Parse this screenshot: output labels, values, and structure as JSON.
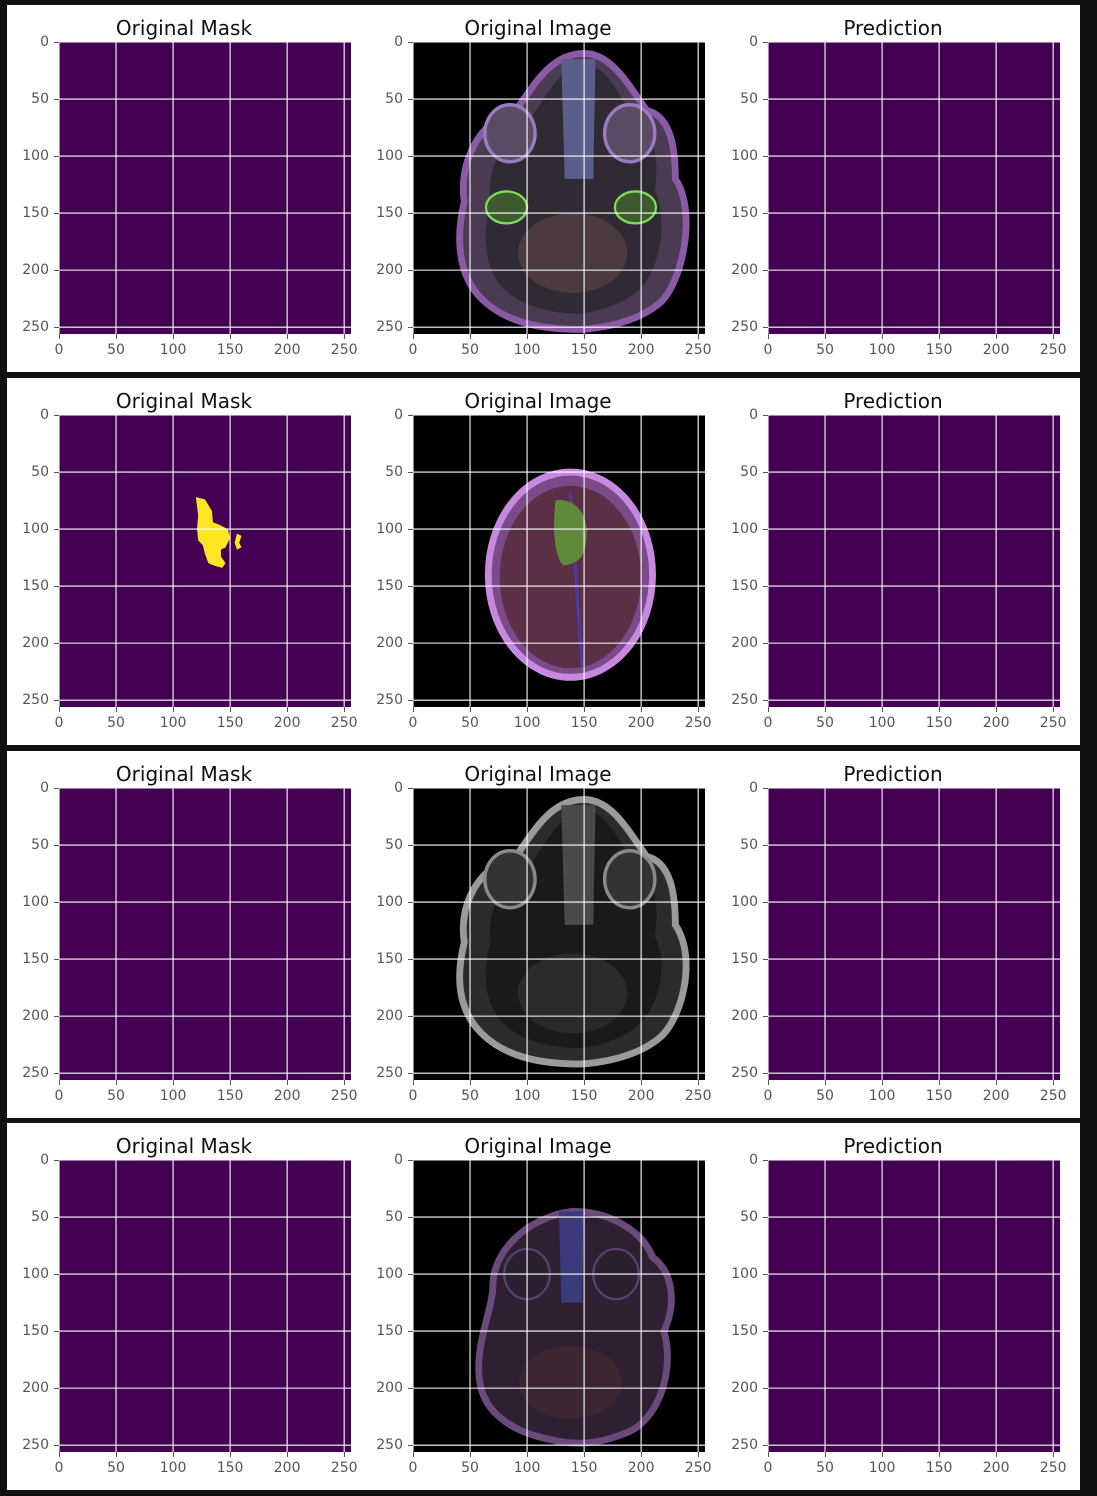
{
  "figures": [
    {
      "panels": [
        {
          "title": "Original Mask",
          "kind": "mask",
          "content": "empty",
          "fill_color": "#440154"
        },
        {
          "title": "Original Image",
          "kind": "mri",
          "content": "mri-color-skull-base",
          "fill_color": "#000000"
        },
        {
          "title": "Prediction",
          "kind": "mask",
          "content": "empty",
          "fill_color": "#440154"
        }
      ]
    },
    {
      "panels": [
        {
          "title": "Original Mask",
          "kind": "mask",
          "content": "tumor-blob",
          "fill_color": "#440154",
          "blob_color": "#fde725"
        },
        {
          "title": "Original Image",
          "kind": "mri",
          "content": "mri-color-axial-tumor",
          "fill_color": "#000000"
        },
        {
          "title": "Prediction",
          "kind": "mask",
          "content": "empty",
          "fill_color": "#440154"
        }
      ]
    },
    {
      "panels": [
        {
          "title": "Original Mask",
          "kind": "mask",
          "content": "empty",
          "fill_color": "#440154"
        },
        {
          "title": "Original Image",
          "kind": "mri",
          "content": "mri-gray-skull-base",
          "fill_color": "#000000"
        },
        {
          "title": "Prediction",
          "kind": "mask",
          "content": "empty",
          "fill_color": "#440154"
        }
      ]
    },
    {
      "panels": [
        {
          "title": "Original Mask",
          "kind": "mask",
          "content": "empty",
          "fill_color": "#440154"
        },
        {
          "title": "Original Image",
          "kind": "mri",
          "content": "mri-dark-skull-base",
          "fill_color": "#000000"
        },
        {
          "title": "Prediction",
          "kind": "mask",
          "content": "empty",
          "fill_color": "#440154"
        }
      ]
    }
  ],
  "axis": {
    "y_ticks": [
      "0",
      "50",
      "100",
      "150",
      "200",
      "250"
    ],
    "x_ticks": [
      "0",
      "50",
      "100",
      "150",
      "200",
      "250"
    ],
    "range": [
      0,
      255
    ],
    "grid": true,
    "grid_color": "#ffffff"
  },
  "colors": {
    "page_background": "#111111",
    "figure_background": "#ffffff",
    "mask_background": "#440154",
    "mask_foreground": "#fde725"
  }
}
